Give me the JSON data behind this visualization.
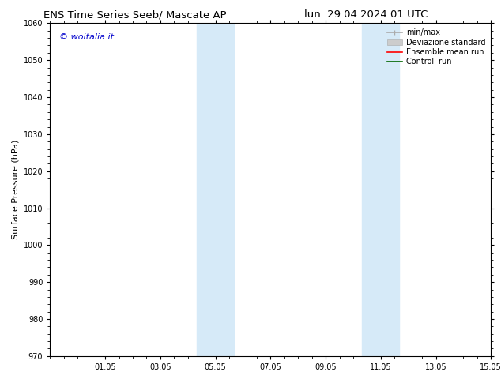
{
  "title_left": "ENS Time Series Seeb/ Mascate AP",
  "title_right": "lun. 29.04.2024 01 UTC",
  "ylabel": "Surface Pressure (hPa)",
  "ylim": [
    970,
    1060
  ],
  "yticks": [
    970,
    980,
    990,
    1000,
    1010,
    1020,
    1030,
    1040,
    1050,
    1060
  ],
  "xlim": [
    0,
    16
  ],
  "xtick_labels": [
    "01.05",
    "03.05",
    "05.05",
    "07.05",
    "09.05",
    "11.05",
    "13.05",
    "15.05"
  ],
  "xtick_positions": [
    2,
    4,
    6,
    8,
    10,
    12,
    14,
    16
  ],
  "shaded_bands": [
    {
      "x_start": 5.33,
      "x_end": 6.0
    },
    {
      "x_start": 6.0,
      "x_end": 6.67
    }
  ],
  "shaded_bands2": [
    {
      "x_start": 11.33,
      "x_end": 12.0
    },
    {
      "x_start": 12.0,
      "x_end": 12.67
    }
  ],
  "watermark": "© woitalia.it",
  "watermark_color": "#0000cc",
  "background_color": "#ffffff",
  "plot_bg_color": "#ffffff",
  "shade_color": "#d6eaf8",
  "legend_items": [
    {
      "label": "min/max",
      "color": "#aaaaaa",
      "lw": 1.2
    },
    {
      "label": "Deviazione standard",
      "color": "#cccccc",
      "lw": 6
    },
    {
      "label": "Ensemble mean run",
      "color": "#ff0000",
      "lw": 1.2
    },
    {
      "label": "Controll run",
      "color": "#006600",
      "lw": 1.2
    }
  ],
  "title_fontsize": 9.5,
  "tick_fontsize": 7,
  "ylabel_fontsize": 8,
  "watermark_fontsize": 8,
  "legend_fontsize": 7,
  "spine_color": "#000000"
}
